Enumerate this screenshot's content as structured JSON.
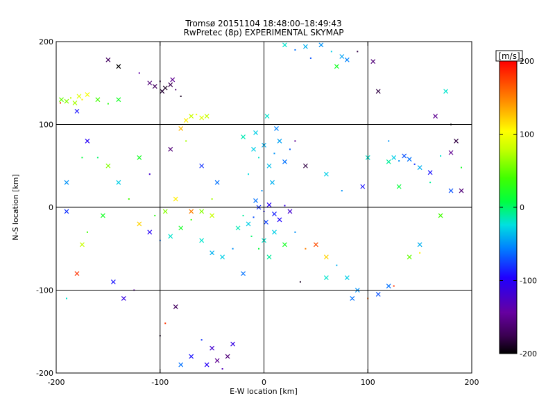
{
  "chart_data": {
    "type": "scatter",
    "title": "Tromsø 20151104 18:48:00–18:49:43",
    "subtitle": "RwPretec (8p) EXPERIMENTAL SKYMAP",
    "xlabel": "E-W location [km]",
    "ylabel": "N-S location [km]",
    "xlim": [
      -200,
      200
    ],
    "ylim": [
      -200,
      200
    ],
    "xticks": [
      -200,
      -100,
      0,
      100,
      200
    ],
    "yticks": [
      -200,
      -100,
      0,
      100,
      200
    ],
    "grid": true,
    "marker_shapes": [
      "x",
      "dot"
    ],
    "colorbar": {
      "label": "[m/s]",
      "range": [
        -200,
        200
      ],
      "ticks": [
        -200,
        -100,
        0,
        100,
        200
      ],
      "colormap": "rainbow: black-purple-blue-cyan-green-yellow-red"
    },
    "series": [
      {
        "points": [
          {
            "x": -195,
            "y": 130,
            "v": 50
          },
          {
            "x": -190,
            "y": 128,
            "v": 60
          },
          {
            "x": -186,
            "y": 132,
            "v": 80
          },
          {
            "x": -182,
            "y": 126,
            "v": 70
          },
          {
            "x": -178,
            "y": 134,
            "v": 90
          },
          {
            "x": -175,
            "y": 130,
            "v": 110
          },
          {
            "x": -170,
            "y": 136,
            "v": 100
          },
          {
            "x": -160,
            "y": 130,
            "v": 40
          },
          {
            "x": -150,
            "y": 125,
            "v": 30
          },
          {
            "x": -140,
            "y": 130,
            "v": 20
          },
          {
            "x": -180,
            "y": 116,
            "v": -90
          },
          {
            "x": -196,
            "y": 126,
            "v": 180
          },
          {
            "x": -110,
            "y": 150,
            "v": -160
          },
          {
            "x": -105,
            "y": 146,
            "v": -170
          },
          {
            "x": -100,
            "y": 152,
            "v": -180
          },
          {
            "x": -95,
            "y": 144,
            "v": -190
          },
          {
            "x": -90,
            "y": 148,
            "v": -175
          },
          {
            "x": -85,
            "y": 142,
            "v": -165
          },
          {
            "x": -98,
            "y": 140,
            "v": -185
          },
          {
            "x": -88,
            "y": 154,
            "v": -150
          },
          {
            "x": -120,
            "y": 162,
            "v": -140
          },
          {
            "x": -140,
            "y": 170,
            "v": -200
          },
          {
            "x": -150,
            "y": 178,
            "v": -170
          },
          {
            "x": -80,
            "y": 134,
            "v": -190
          },
          {
            "x": -70,
            "y": 110,
            "v": 80
          },
          {
            "x": -60,
            "y": 108,
            "v": 90
          },
          {
            "x": -65,
            "y": 112,
            "v": 100
          },
          {
            "x": -55,
            "y": 110,
            "v": 80
          },
          {
            "x": -75,
            "y": 105,
            "v": 110
          },
          {
            "x": 30,
            "y": 190,
            "v": -60
          },
          {
            "x": 40,
            "y": 194,
            "v": -40
          },
          {
            "x": 55,
            "y": 196,
            "v": -50
          },
          {
            "x": 65,
            "y": 188,
            "v": -30
          },
          {
            "x": 75,
            "y": 182,
            "v": -45
          },
          {
            "x": 80,
            "y": 178,
            "v": -55
          },
          {
            "x": 90,
            "y": 188,
            "v": -180
          },
          {
            "x": 105,
            "y": 176,
            "v": -160
          },
          {
            "x": 70,
            "y": 170,
            "v": 20
          },
          {
            "x": 45,
            "y": 180,
            "v": -70
          },
          {
            "x": 20,
            "y": 196,
            "v": -20
          },
          {
            "x": 125,
            "y": 60,
            "v": -30
          },
          {
            "x": 130,
            "y": 56,
            "v": -50
          },
          {
            "x": 135,
            "y": 62,
            "v": -70
          },
          {
            "x": 140,
            "y": 58,
            "v": -60
          },
          {
            "x": 145,
            "y": 52,
            "v": -80
          },
          {
            "x": 150,
            "y": 48,
            "v": -40
          },
          {
            "x": 160,
            "y": 42,
            "v": -90
          },
          {
            "x": 170,
            "y": 62,
            "v": -20
          },
          {
            "x": 180,
            "y": 66,
            "v": -150
          },
          {
            "x": 185,
            "y": 80,
            "v": -180
          },
          {
            "x": 190,
            "y": 48,
            "v": 20
          },
          {
            "x": 120,
            "y": 55,
            "v": -10
          },
          {
            "x": -10,
            "y": 70,
            "v": -30
          },
          {
            "x": -5,
            "y": 60,
            "v": -20
          },
          {
            "x": 0,
            "y": 75,
            "v": -40
          },
          {
            "x": 5,
            "y": 50,
            "v": -35
          },
          {
            "x": 10,
            "y": 65,
            "v": -50
          },
          {
            "x": 15,
            "y": 80,
            "v": -45
          },
          {
            "x": 20,
            "y": 55,
            "v": -60
          },
          {
            "x": -15,
            "y": 40,
            "v": -25
          },
          {
            "x": -8,
            "y": 90,
            "v": -30
          },
          {
            "x": 8,
            "y": 30,
            "v": -40
          },
          {
            "x": -2,
            "y": 20,
            "v": -50
          },
          {
            "x": 12,
            "y": 95,
            "v": -55
          },
          {
            "x": -20,
            "y": 85,
            "v": -15
          },
          {
            "x": 25,
            "y": 70,
            "v": -65
          },
          {
            "x": 3,
            "y": 110,
            "v": -20
          },
          {
            "x": -5,
            "y": 0,
            "v": -80
          },
          {
            "x": 0,
            "y": -5,
            "v": -90
          },
          {
            "x": 5,
            "y": 3,
            "v": -100
          },
          {
            "x": 10,
            "y": -8,
            "v": -85
          },
          {
            "x": -10,
            "y": -12,
            "v": -70
          },
          {
            "x": -15,
            "y": -20,
            "v": -30
          },
          {
            "x": 15,
            "y": -15,
            "v": -95
          },
          {
            "x": 20,
            "y": 2,
            "v": -110
          },
          {
            "x": 2,
            "y": -18,
            "v": -75
          },
          {
            "x": -8,
            "y": 8,
            "v": -60
          },
          {
            "x": -20,
            "y": -10,
            "v": -10
          },
          {
            "x": 25,
            "y": -5,
            "v": -120
          },
          {
            "x": 0,
            "y": -40,
            "v": -20
          },
          {
            "x": -5,
            "y": -50,
            "v": 10
          },
          {
            "x": 5,
            "y": -60,
            "v": -10
          },
          {
            "x": 10,
            "y": -30,
            "v": -30
          },
          {
            "x": -12,
            "y": -35,
            "v": 0
          },
          {
            "x": 20,
            "y": -45,
            "v": 20
          },
          {
            "x": -25,
            "y": -25,
            "v": -15
          },
          {
            "x": 30,
            "y": -30,
            "v": -50
          },
          {
            "x": -50,
            "y": -10,
            "v": 80
          },
          {
            "x": -60,
            "y": -5,
            "v": 60
          },
          {
            "x": -70,
            "y": -15,
            "v": 40
          },
          {
            "x": -80,
            "y": -25,
            "v": 20
          },
          {
            "x": -90,
            "y": -35,
            "v": -20
          },
          {
            "x": -100,
            "y": -40,
            "v": -60
          },
          {
            "x": -110,
            "y": -30,
            "v": -100
          },
          {
            "x": -120,
            "y": -20,
            "v": 120
          },
          {
            "x": -130,
            "y": 10,
            "v": 40
          },
          {
            "x": -140,
            "y": 30,
            "v": -30
          },
          {
            "x": -150,
            "y": 50,
            "v": 60
          },
          {
            "x": -160,
            "y": 60,
            "v": 0
          },
          {
            "x": -175,
            "y": -45,
            "v": 80
          },
          {
            "x": -180,
            "y": -80,
            "v": 180
          },
          {
            "x": -190,
            "y": -110,
            "v": -20
          },
          {
            "x": -145,
            "y": -90,
            "v": -90
          },
          {
            "x": -135,
            "y": -110,
            "v": -110
          },
          {
            "x": -125,
            "y": -100,
            "v": -140
          },
          {
            "x": -50,
            "y": -55,
            "v": -40
          },
          {
            "x": -40,
            "y": -60,
            "v": -30
          },
          {
            "x": -30,
            "y": -50,
            "v": -50
          },
          {
            "x": -60,
            "y": -40,
            "v": -20
          },
          {
            "x": -20,
            "y": -80,
            "v": -60
          },
          {
            "x": -100,
            "y": -155,
            "v": -190
          },
          {
            "x": -50,
            "y": -170,
            "v": -120
          },
          {
            "x": -45,
            "y": -185,
            "v": -150
          },
          {
            "x": -40,
            "y": -195,
            "v": -130
          },
          {
            "x": -35,
            "y": -180,
            "v": -160
          },
          {
            "x": -55,
            "y": -190,
            "v": -100
          },
          {
            "x": -60,
            "y": -160,
            "v": -80
          },
          {
            "x": -30,
            "y": -165,
            "v": -110
          },
          {
            "x": -70,
            "y": -180,
            "v": -90
          },
          {
            "x": -95,
            "y": -140,
            "v": 180
          },
          {
            "x": -80,
            "y": -190,
            "v": -60
          },
          {
            "x": -85,
            "y": -120,
            "v": -170
          },
          {
            "x": 40,
            "y": -50,
            "v": 150
          },
          {
            "x": 50,
            "y": -45,
            "v": 170
          },
          {
            "x": 60,
            "y": -60,
            "v": 120
          },
          {
            "x": 70,
            "y": -70,
            "v": -40
          },
          {
            "x": 80,
            "y": -85,
            "v": -30
          },
          {
            "x": 90,
            "y": -100,
            "v": -50
          },
          {
            "x": 100,
            "y": -110,
            "v": 160
          },
          {
            "x": 110,
            "y": -105,
            "v": -70
          },
          {
            "x": 120,
            "y": -95,
            "v": -60
          },
          {
            "x": 125,
            "y": -95,
            "v": 180
          },
          {
            "x": 140,
            "y": -60,
            "v": 50
          },
          {
            "x": 150,
            "y": -45,
            "v": -40
          },
          {
            "x": 150,
            "y": -55,
            "v": 110
          },
          {
            "x": 170,
            "y": -10,
            "v": 40
          },
          {
            "x": 180,
            "y": 20,
            "v": -70
          },
          {
            "x": 35,
            "y": -90,
            "v": -190
          },
          {
            "x": 60,
            "y": -85,
            "v": -20
          },
          {
            "x": 85,
            "y": -110,
            "v": -60
          },
          {
            "x": 30,
            "y": 80,
            "v": -150
          },
          {
            "x": 40,
            "y": 50,
            "v": -180
          },
          {
            "x": 60,
            "y": 40,
            "v": -30
          },
          {
            "x": 75,
            "y": 20,
            "v": -50
          },
          {
            "x": 95,
            "y": 25,
            "v": -90
          },
          {
            "x": 100,
            "y": 60,
            "v": -20
          },
          {
            "x": 160,
            "y": 30,
            "v": -10
          },
          {
            "x": 190,
            "y": 20,
            "v": -160
          },
          {
            "x": 165,
            "y": 110,
            "v": -150
          },
          {
            "x": 180,
            "y": 100,
            "v": -200
          },
          {
            "x": 110,
            "y": 140,
            "v": -180
          },
          {
            "x": 175,
            "y": 140,
            "v": -20
          },
          {
            "x": 120,
            "y": 80,
            "v": -50
          },
          {
            "x": 130,
            "y": 25,
            "v": 10
          },
          {
            "x": -170,
            "y": 80,
            "v": -100
          },
          {
            "x": -175,
            "y": 60,
            "v": 10
          },
          {
            "x": -190,
            "y": 30,
            "v": -50
          },
          {
            "x": -120,
            "y": 60,
            "v": 20
          },
          {
            "x": -110,
            "y": 40,
            "v": -120
          },
          {
            "x": -90,
            "y": 70,
            "v": -160
          },
          {
            "x": -80,
            "y": 95,
            "v": 130
          },
          {
            "x": -75,
            "y": 80,
            "v": 70
          },
          {
            "x": -60,
            "y": 50,
            "v": -80
          },
          {
            "x": -45,
            "y": 30,
            "v": -60
          },
          {
            "x": -50,
            "y": 10,
            "v": 70
          },
          {
            "x": -85,
            "y": 10,
            "v": 110
          },
          {
            "x": -95,
            "y": -5,
            "v": 60
          },
          {
            "x": -105,
            "y": -10,
            "v": 30
          },
          {
            "x": -70,
            "y": -5,
            "v": 150
          },
          {
            "x": -190,
            "y": -5,
            "v": -80
          },
          {
            "x": -170,
            "y": -30,
            "v": 40
          },
          {
            "x": -155,
            "y": -10,
            "v": 20
          }
        ]
      }
    ]
  }
}
